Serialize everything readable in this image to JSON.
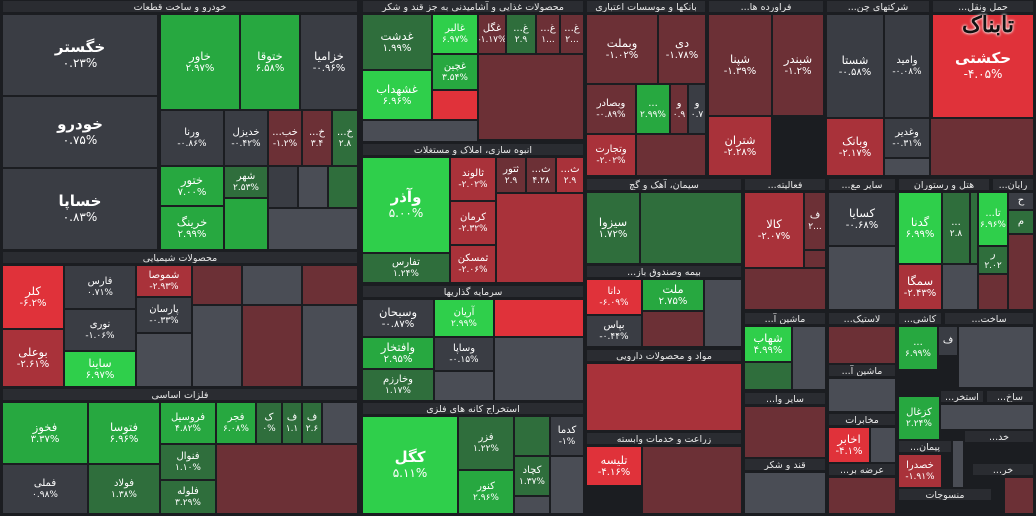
{
  "colors": {
    "neutral": "#3a3d44",
    "green_strong": "#2fcf4b",
    "green_mid": "#27a840",
    "green_dim": "#2f6e3c",
    "red_strong": "#e0323a",
    "red_mid": "#a9323a",
    "red_dim": "#6c3036",
    "grey_dim": "#4a4d55"
  },
  "logo_text": "تابناک",
  "sector_titles": [
    {
      "key": "auto",
      "label": "خودرو و ساخت قطعات"
    },
    {
      "key": "food",
      "label": "محصولات غذایی و آشامیدنی به جز قند و شکر"
    },
    {
      "key": "banks",
      "label": "بانکها و موسسات اعتباری"
    },
    {
      "key": "refinery",
      "label": "فراورده ها..."
    },
    {
      "key": "holdings",
      "label": "شرکتهای چن..."
    },
    {
      "key": "transport",
      "label": "حمل ونقل..."
    },
    {
      "key": "chemical",
      "label": "محصولات شیمیایی"
    },
    {
      "key": "mass",
      "label": "انبوه سازی، املاک و مستغلات"
    },
    {
      "key": "cement",
      "label": "سیمان، آهک و گچ"
    },
    {
      "key": "activities",
      "label": "فعالیته..."
    },
    {
      "key": "other_mine",
      "label": "سایر مع..."
    },
    {
      "key": "hotel",
      "label": "هتل و رستوران"
    },
    {
      "key": "computer",
      "label": "رایان..."
    },
    {
      "key": "invest",
      "label": "سرمایه گذاریها"
    },
    {
      "key": "insurance",
      "label": "بیمه وصندوق باز..."
    },
    {
      "key": "machinery",
      "label": "ماشین آ..."
    },
    {
      "key": "plastic",
      "label": "لاستیک..."
    },
    {
      "key": "tiles",
      "label": "کاشی..."
    },
    {
      "key": "const",
      "label": "ساخت..."
    },
    {
      "key": "metals",
      "label": "فلزات اساسی"
    },
    {
      "key": "pharma",
      "label": "مواد و محصولات دارویی"
    },
    {
      "key": "mach2",
      "label": "ماشین آ..."
    },
    {
      "key": "extract",
      "label": "استخراج کانه های فلزی"
    },
    {
      "key": "other_va",
      "label": "سایر وا..."
    },
    {
      "key": "extract2",
      "label": "استخر..."
    },
    {
      "key": "const2",
      "label": "ساخ..."
    },
    {
      "key": "telecom",
      "label": "مخابرات"
    },
    {
      "key": "agri",
      "label": "زراعت و خدمات وابسته"
    },
    {
      "key": "contract",
      "label": "پیمان..."
    },
    {
      "key": "sugar",
      "label": "قند و شکر"
    },
    {
      "key": "textile",
      "label": "منسوجات"
    },
    {
      "key": "wood",
      "label": "خد..."
    },
    {
      "key": "supply",
      "label": "عرضه بر..."
    },
    {
      "key": "dd",
      "label": "خر..."
    }
  ],
  "tiles": [
    {
      "sym": "خگستر",
      "chg": "۰.۲۳%",
      "c": "neutral"
    },
    {
      "sym": "خودرو",
      "chg": "۰.۷۵%",
      "c": "neutral"
    },
    {
      "sym": "خساپا",
      "chg": "۰.۸۳%",
      "c": "neutral"
    },
    {
      "sym": "خاور",
      "chg": "۲.۹۷%",
      "c": "green_mid"
    },
    {
      "sym": "ختوقا",
      "chg": "۶.۵۸%",
      "c": "green_mid"
    },
    {
      "sym": "خزامیا",
      "chg": "-۰.۹۶%",
      "c": "neutral"
    },
    {
      "sym": "ورنا",
      "chg": "-۰.۸۶%",
      "c": "neutral"
    },
    {
      "sym": "خدیزل",
      "chg": "-۰.۴۲%",
      "c": "neutral"
    },
    {
      "sym": "خب...",
      "chg": "-۱.۲%",
      "c": "red_dim"
    },
    {
      "sym": "خ...",
      "chg": "۳.۴",
      "c": "red_dim"
    },
    {
      "sym": "خ...",
      "chg": "۲.۸",
      "c": "green_dim"
    },
    {
      "sym": "ختور",
      "chg": "۷.۰۰%",
      "c": "green_mid"
    },
    {
      "sym": "خرینگ",
      "chg": "۲.۹۹%",
      "c": "green_mid"
    },
    {
      "sym": "شهر",
      "chg": "۲.۵۳%",
      "c": "green_dim"
    },
    {
      "sym": "غدشت",
      "chg": "۱.۹۹%",
      "c": "green_dim"
    },
    {
      "sym": "غالبر",
      "chg": "۶.۹۷%",
      "c": "green_strong"
    },
    {
      "sym": "غگل",
      "chg": "-۱.۱۷%",
      "c": "red_dim"
    },
    {
      "sym": "غ...",
      "chg": "۲.۹",
      "c": "green_dim"
    },
    {
      "sym": "غ...",
      "chg": "۱...",
      "c": "red_dim"
    },
    {
      "sym": "غ...",
      "chg": "۲...",
      "c": "red_dim"
    },
    {
      "sym": "غشهداب",
      "chg": "۶.۹۶%",
      "c": "green_strong"
    },
    {
      "sym": "غچین",
      "chg": "۳.۵۴%",
      "c": "green_mid"
    },
    {
      "sym": "وبملت",
      "chg": "-۱.۰۲%",
      "c": "red_dim"
    },
    {
      "sym": "دی",
      "chg": "-۱.۷۸%",
      "c": "red_dim"
    },
    {
      "sym": "وبصادر",
      "chg": "-۰.۸۹%",
      "c": "red_dim"
    },
    {
      "sym": "...",
      "chg": "۲.۹۹%",
      "c": "green_mid"
    },
    {
      "sym": "و",
      "chg": "۰.۹",
      "c": "red_dim"
    },
    {
      "sym": "و",
      "chg": "۰.۷",
      "c": "neutral"
    },
    {
      "sym": "وتجارت",
      "chg": "-۲.۰۲%",
      "c": "red_mid"
    },
    {
      "sym": "شپنا",
      "chg": "-۱.۳۹%",
      "c": "red_dim"
    },
    {
      "sym": "شبندر",
      "chg": "-۱.۲%",
      "c": "red_dim"
    },
    {
      "sym": "شتران",
      "chg": "-۲.۲۸%",
      "c": "red_mid"
    },
    {
      "sym": "شستا",
      "chg": "-۰.۵۸%",
      "c": "neutral"
    },
    {
      "sym": "وامید",
      "chg": "-۰.۰۸%",
      "c": "neutral"
    },
    {
      "sym": "وبانک",
      "chg": "-۲.۱۷%",
      "c": "red_mid"
    },
    {
      "sym": "وغدیر",
      "chg": "-۰.۳۱%",
      "c": "neutral"
    },
    {
      "sym": "حکشتی",
      "chg": "-۴.۰۵%",
      "c": "red_strong"
    },
    {
      "sym": "کلر",
      "chg": "-۶.۲%",
      "c": "red_strong"
    },
    {
      "sym": "فارس",
      "chg": "۰.۷۱%",
      "c": "neutral"
    },
    {
      "sym": "شموصا",
      "chg": "-۲.۹۳%",
      "c": "red_mid"
    },
    {
      "sym": "پارسان",
      "chg": "-۰.۳۳%",
      "c": "neutral"
    },
    {
      "sym": "نوری",
      "chg": "-۱.۰۶%",
      "c": "neutral"
    },
    {
      "sym": "بوعلی",
      "chg": "-۲.۶۱%",
      "c": "red_mid"
    },
    {
      "sym": "ساینا",
      "chg": "۶.۹۷%",
      "c": "green_strong"
    },
    {
      "sym": "وآذر",
      "chg": "۵.۰۰%",
      "c": "green_strong"
    },
    {
      "sym": "ثالوند",
      "chg": "-۲.۰۲%",
      "c": "red_mid"
    },
    {
      "sym": "ثتور",
      "chg": "۲.۹",
      "c": "red_dim"
    },
    {
      "sym": "ث...",
      "chg": "۴.۲۸",
      "c": "red_dim"
    },
    {
      "sym": "ث...",
      "chg": "۲.۹",
      "c": "red_mid"
    },
    {
      "sym": "کرمان",
      "chg": "-۲.۳۲%",
      "c": "red_mid"
    },
    {
      "sym": "ثمسکن",
      "chg": "-۲.۰۶%",
      "c": "red_mid"
    },
    {
      "sym": "تفارس",
      "chg": "۱.۲۴%",
      "c": "green_dim"
    },
    {
      "sym": "سیزوا",
      "chg": "۱.۷۲%",
      "c": "green_dim"
    },
    {
      "sym": "کالا",
      "chg": "-۲.۰۷%",
      "c": "red_mid"
    },
    {
      "sym": "ف",
      "chg": "۲...",
      "c": "red_dim"
    },
    {
      "sym": "کسایا",
      "chg": "-۰.۶۸%",
      "c": "neutral"
    },
    {
      "sym": "گدنا",
      "chg": "۶.۹۹%",
      "c": "green_strong"
    },
    {
      "sym": "...",
      "chg": "۲.۸",
      "c": "green_dim"
    },
    {
      "sym": "تا...",
      "chg": "۶.۹۶%",
      "c": "green_strong"
    },
    {
      "sym": "سمگا",
      "chg": "-۲.۴۳%",
      "c": "red_mid"
    },
    {
      "sym": "وسبحان",
      "chg": "-۰.۸۷%",
      "c": "neutral"
    },
    {
      "sym": "آریان",
      "chg": "۲.۹۹%",
      "c": "green_strong"
    },
    {
      "sym": "وافتخار",
      "chg": "۲.۹۵%",
      "c": "green_mid"
    },
    {
      "sym": "وساپا",
      "chg": "-۰.۱۵%",
      "c": "neutral"
    },
    {
      "sym": "وخارزم",
      "chg": "۱.۱۷%",
      "c": "green_dim"
    },
    {
      "sym": "دانا",
      "chg": "-۶.۰۹%",
      "c": "red_strong"
    },
    {
      "sym": "ملت",
      "chg": "۲.۷۵%",
      "c": "green_mid"
    },
    {
      "sym": "بپاس",
      "chg": "-۰.۴۴%",
      "c": "neutral"
    },
    {
      "sym": "شهاب",
      "chg": "۴.۹۹%",
      "c": "green_strong"
    },
    {
      "sym": "...",
      "chg": "۶.۹۹%",
      "c": "green_mid"
    },
    {
      "sym": "ف",
      "chg": "",
      "c": "neutral"
    },
    {
      "sym": "فخوز",
      "chg": "۳.۳۷%",
      "c": "green_mid"
    },
    {
      "sym": "فتوسا",
      "chg": "۶.۹۶%",
      "c": "green_mid"
    },
    {
      "sym": "فروسیل",
      "chg": "۴.۸۲%",
      "c": "green_mid"
    },
    {
      "sym": "فجر",
      "chg": "۶.۰۸%",
      "c": "green_mid"
    },
    {
      "sym": "ک",
      "chg": "۰%",
      "c": "green_dim"
    },
    {
      "sym": "ف",
      "chg": "۱.۱",
      "c": "green_dim"
    },
    {
      "sym": "ف",
      "chg": "۲.۶",
      "c": "green_dim"
    },
    {
      "sym": "فنوال",
      "chg": "۱.۱۰%",
      "c": "green_dim"
    },
    {
      "sym": "فملی",
      "chg": "۰.۹۸%",
      "c": "neutral"
    },
    {
      "sym": "فولاد",
      "chg": "۱.۳۸%",
      "c": "green_dim"
    },
    {
      "sym": "فلوله",
      "chg": "۳.۲۹%",
      "c": "green_dim"
    },
    {
      "sym": "کگل",
      "chg": "۵.۱۱%",
      "c": "green_strong"
    },
    {
      "sym": "فزر",
      "chg": "۱.۲۲%",
      "c": "green_dim"
    },
    {
      "sym": "کنور",
      "chg": "۲.۹۶%",
      "c": "green_mid"
    },
    {
      "sym": "کدما",
      "chg": "-۱%",
      "c": "neutral"
    },
    {
      "sym": "کچاد",
      "chg": "۱.۳۷%",
      "c": "green_dim"
    },
    {
      "sym": "تلیسه",
      "chg": "-۴.۱۶%",
      "c": "red_strong"
    },
    {
      "sym": "اخابر",
      "chg": "-۴.۱%",
      "c": "red_strong"
    },
    {
      "sym": "کزغال",
      "chg": "۲.۲۴%",
      "c": "green_mid"
    },
    {
      "sym": "خصدرا",
      "chg": "-۱.۹۱%",
      "c": "red_mid"
    },
    {
      "sym": "ح",
      "chg": "",
      "c": "neutral"
    },
    {
      "sym": "م",
      "chg": "",
      "c": "green_dim"
    },
    {
      "sym": "ر",
      "chg": "۲.۰۲",
      "c": "green_dim"
    }
  ]
}
